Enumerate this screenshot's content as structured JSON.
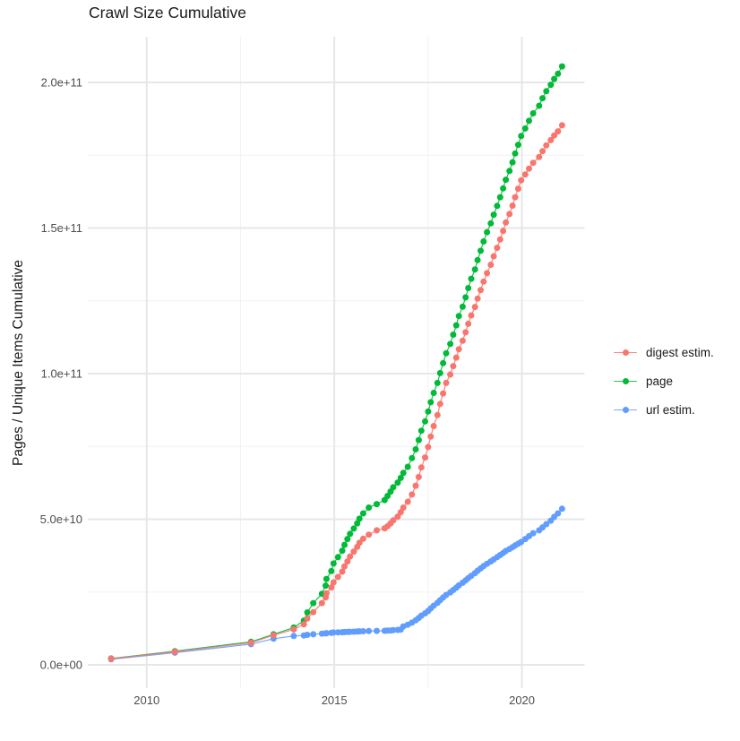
{
  "chart_data": {
    "type": "scatter",
    "title": "Crawl Size Cumulative",
    "xlabel": "",
    "ylabel": "Pages / Unique Items Cumulative",
    "unit_note": "values_billions are pages/items in units of 1e9, as read from the y axis (e.g. 205.5 = 2.055e+11)",
    "grid": true,
    "legend_position": "right",
    "xlim": [
      2008.43,
      2021.67
    ],
    "ylim_billions": [
      -8,
      215.7
    ],
    "x_ticks": [
      {
        "value": 2010,
        "label": "2010"
      },
      {
        "value": 2015,
        "label": "2015"
      },
      {
        "value": 2020,
        "label": "2020"
      }
    ],
    "x_minor": [
      2012.5,
      2017.5
    ],
    "y_ticks": [
      {
        "value": 0,
        "label": "0.0e+00"
      },
      {
        "value": 50,
        "label": "5.0e+10"
      },
      {
        "value": 100,
        "label": "1.0e+11"
      },
      {
        "value": 150,
        "label": "1.5e+11"
      },
      {
        "value": 200,
        "label": "2.0e+11"
      }
    ],
    "y_minor": [
      25,
      75,
      125,
      175
    ],
    "x_years": [
      2009.05,
      2010.75,
      2012.78,
      2013.38,
      2013.92,
      2014.19,
      2014.28,
      2014.44,
      2014.67,
      2014.77,
      2014.79,
      2014.92,
      2014.98,
      2015.1,
      2015.21,
      2015.27,
      2015.35,
      2015.42,
      2015.52,
      2015.61,
      2015.67,
      2015.77,
      2015.92,
      2016.13,
      2016.34,
      2016.42,
      2016.5,
      2016.57,
      2016.69,
      2016.77,
      2016.84,
      2016.96,
      2017.07,
      2017.17,
      2017.25,
      2017.32,
      2017.42,
      2017.5,
      2017.57,
      2017.65,
      2017.75,
      2017.82,
      2017.9,
      2017.98,
      2018.09,
      2018.17,
      2018.25,
      2018.32,
      2018.42,
      2018.5,
      2018.57,
      2018.65,
      2018.75,
      2018.82,
      2018.9,
      2018.98,
      2019.07,
      2019.17,
      2019.25,
      2019.34,
      2019.42,
      2019.5,
      2019.57,
      2019.67,
      2019.75,
      2019.82,
      2019.9,
      2019.98,
      2020.09,
      2020.19,
      2020.3,
      2020.46,
      2020.55,
      2020.65,
      2020.77,
      2020.86,
      2020.96,
      2021.07
    ],
    "series": [
      {
        "name": "digest estim.",
        "color": "#F8766D",
        "values_billions": [
          2.1,
          4.5,
          7.6,
          10.2,
          12.2,
          13.9,
          15.9,
          18.1,
          21.2,
          23.2,
          24.6,
          26.6,
          28.3,
          30.2,
          32.0,
          33.8,
          35.5,
          37.2,
          38.9,
          40.5,
          41.9,
          43.3,
          44.7,
          46.2,
          46.9,
          47.6,
          48.6,
          49.6,
          50.9,
          52.4,
          54.0,
          56.0,
          58.5,
          61.5,
          64.5,
          67.8,
          71.2,
          74.8,
          78.4,
          82.0,
          85.8,
          89.6,
          93.2,
          96.8,
          99.7,
          102.6,
          105.5,
          108.4,
          111.3,
          114.2,
          117.1,
          120.0,
          122.9,
          125.8,
          128.7,
          131.6,
          134.5,
          137.4,
          140.3,
          143.2,
          146.1,
          149.0,
          151.9,
          154.8,
          157.7,
          160.6,
          163.5,
          166.4,
          168.4,
          170.4,
          172.4,
          174.4,
          176.4,
          178.4,
          180.2,
          181.8,
          183.2,
          185.3
        ]
      },
      {
        "name": "page",
        "color": "#00BA38",
        "values_billions": [
          2.2,
          4.7,
          7.9,
          10.5,
          12.8,
          15.2,
          18.0,
          21.2,
          24.4,
          27.2,
          29.5,
          32.2,
          34.8,
          37.0,
          39.2,
          41.2,
          43.2,
          45.0,
          46.8,
          48.6,
          50.2,
          52.0,
          54.0,
          55.2,
          56.6,
          58.0,
          59.5,
          61.0,
          62.6,
          64.2,
          65.9,
          68.0,
          71.0,
          74.0,
          77.2,
          80.4,
          83.6,
          87.0,
          90.2,
          93.4,
          96.8,
          100.2,
          103.6,
          107.0,
          110.2,
          113.4,
          116.6,
          119.8,
          123.0,
          126.2,
          129.4,
          132.6,
          135.8,
          139.0,
          142.2,
          145.4,
          148.6,
          151.6,
          154.6,
          157.6,
          160.6,
          163.6,
          166.6,
          169.6,
          172.6,
          175.6,
          178.6,
          181.6,
          184.2,
          186.8,
          189.4,
          192.0,
          194.6,
          197.0,
          199.2,
          201.2,
          203.0,
          205.5
        ]
      },
      {
        "name": "url estim.",
        "color": "#619CFF",
        "values_billions": [
          1.9,
          4.2,
          7.1,
          9.0,
          9.9,
          10.1,
          10.3,
          10.5,
          10.7,
          10.8,
          10.9,
          11.0,
          11.1,
          11.15,
          11.2,
          11.25,
          11.3,
          11.35,
          11.4,
          11.45,
          11.5,
          11.55,
          11.6,
          11.65,
          11.7,
          11.75,
          11.8,
          11.9,
          12.0,
          12.1,
          13.2,
          13.8,
          14.5,
          15.3,
          16.1,
          16.9,
          17.7,
          18.5,
          19.4,
          20.3,
          21.3,
          22.2,
          23.1,
          24.0,
          24.9,
          25.7,
          26.5,
          27.3,
          28.2,
          29.0,
          29.8,
          30.6,
          31.5,
          32.3,
          33.1,
          33.9,
          34.7,
          35.5,
          36.2,
          37.0,
          37.7,
          38.4,
          39.1,
          39.8,
          40.4,
          41.0,
          41.6,
          42.2,
          43.2,
          44.2,
          45.2,
          46.2,
          47.2,
          48.3,
          49.5,
          50.8,
          52.0,
          53.6
        ]
      }
    ],
    "colors": {
      "background": "#FFFFFF",
      "grid_major": "#E7E7E7",
      "grid_minor": "#F2F2F2",
      "tick_label": "#4D4D4D",
      "title": "#1A1A1A"
    }
  }
}
